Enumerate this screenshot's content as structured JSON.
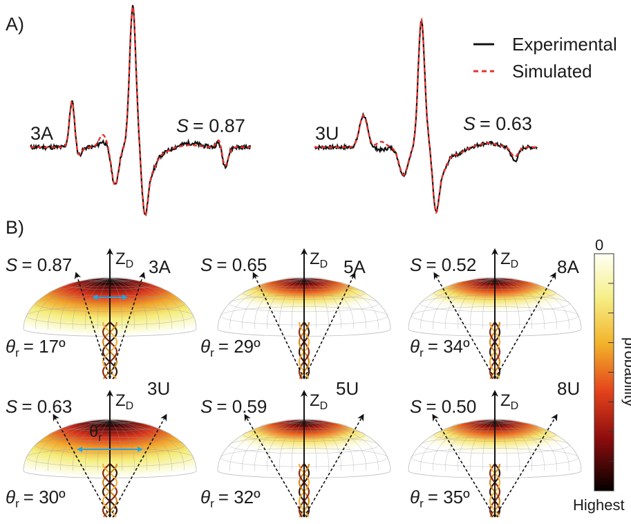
{
  "panel_a": {
    "label": "A)",
    "legend": {
      "experimental": "Experimental",
      "simulated": "Simulated"
    },
    "spectra": [
      {
        "sample": "3A",
        "s_label": "S",
        "s_value": "= 0.87"
      },
      {
        "sample": "3U",
        "s_label": "S",
        "s_value": "= 0.63"
      }
    ]
  },
  "panel_b": {
    "label": "B)",
    "axis_label": "Z",
    "axis_sub": "D",
    "theta_symbol": "θ",
    "theta_sub": "r",
    "cones": [
      {
        "sample": "3A",
        "s_label": "S",
        "s_value": "= 0.87",
        "theta_value": "= 17º"
      },
      {
        "sample": "5A",
        "s_label": "S",
        "s_value": "= 0.65",
        "theta_value": "= 29º"
      },
      {
        "sample": "8A",
        "s_label": "S",
        "s_value": "= 0.52",
        "theta_value": "= 34º"
      },
      {
        "sample": "3U",
        "s_label": "S",
        "s_value": "= 0.63",
        "theta_value": "= 30º"
      },
      {
        "sample": "5U",
        "s_label": "S",
        "s_value": "= 0.59",
        "theta_value": "= 32º"
      },
      {
        "sample": "8U",
        "s_label": "S",
        "s_value": "= 0.50",
        "theta_value": "= 35º"
      }
    ],
    "inset_label": "θ",
    "inset_sub": "r",
    "colorbar": {
      "top_label": "0",
      "title": "probability",
      "bottom_label": "Highest"
    }
  },
  "colors": {
    "experimental": "#111111",
    "simulated": "#e8302a",
    "arrow_blue": "#2aa3e0"
  }
}
